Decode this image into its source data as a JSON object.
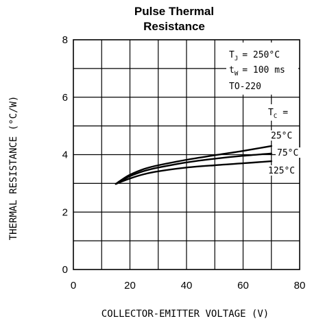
{
  "chart_data": {
    "type": "line",
    "title_line1": "Pulse Thermal",
    "title_line2": "Resistance",
    "xlabel": "COLLECTOR-EMITTER VOLTAGE (V)",
    "ylabel": "THERMAL RESISTANCE (°C/W)",
    "xlim": [
      0,
      80
    ],
    "ylim": [
      0,
      8
    ],
    "x_ticks": [
      0,
      20,
      40,
      60,
      80
    ],
    "y_ticks": [
      0,
      2,
      4,
      6,
      8
    ],
    "x_grid_step": 10,
    "y_grid_step": 1,
    "grid": true,
    "conditions": {
      "tj_symbol": "T",
      "tj_sub": "J",
      "tj_value": "= 250°C",
      "tw_symbol": "t",
      "tw_sub": "W",
      "tw_value": "= 100 ms",
      "package": "TO-220",
      "tc_symbol": "T",
      "tc_sub": "C",
      "tc_value": "="
    },
    "series": [
      {
        "name": "25°C",
        "x": [
          15,
          17,
          20,
          25,
          30,
          40,
          50,
          60,
          70
        ],
        "y": [
          2.98,
          3.12,
          3.3,
          3.5,
          3.63,
          3.82,
          3.98,
          4.13,
          4.3
        ]
      },
      {
        "name": "75°C",
        "x": [
          15,
          17,
          20,
          25,
          30,
          40,
          50,
          60,
          70
        ],
        "y": [
          2.98,
          3.09,
          3.25,
          3.43,
          3.55,
          3.73,
          3.86,
          3.96,
          4.04
        ]
      },
      {
        "name": "125°C",
        "x": [
          15,
          17,
          20,
          25,
          30,
          40,
          50,
          60,
          70
        ],
        "y": [
          2.98,
          3.06,
          3.17,
          3.32,
          3.42,
          3.55,
          3.63,
          3.7,
          3.77
        ]
      }
    ]
  }
}
